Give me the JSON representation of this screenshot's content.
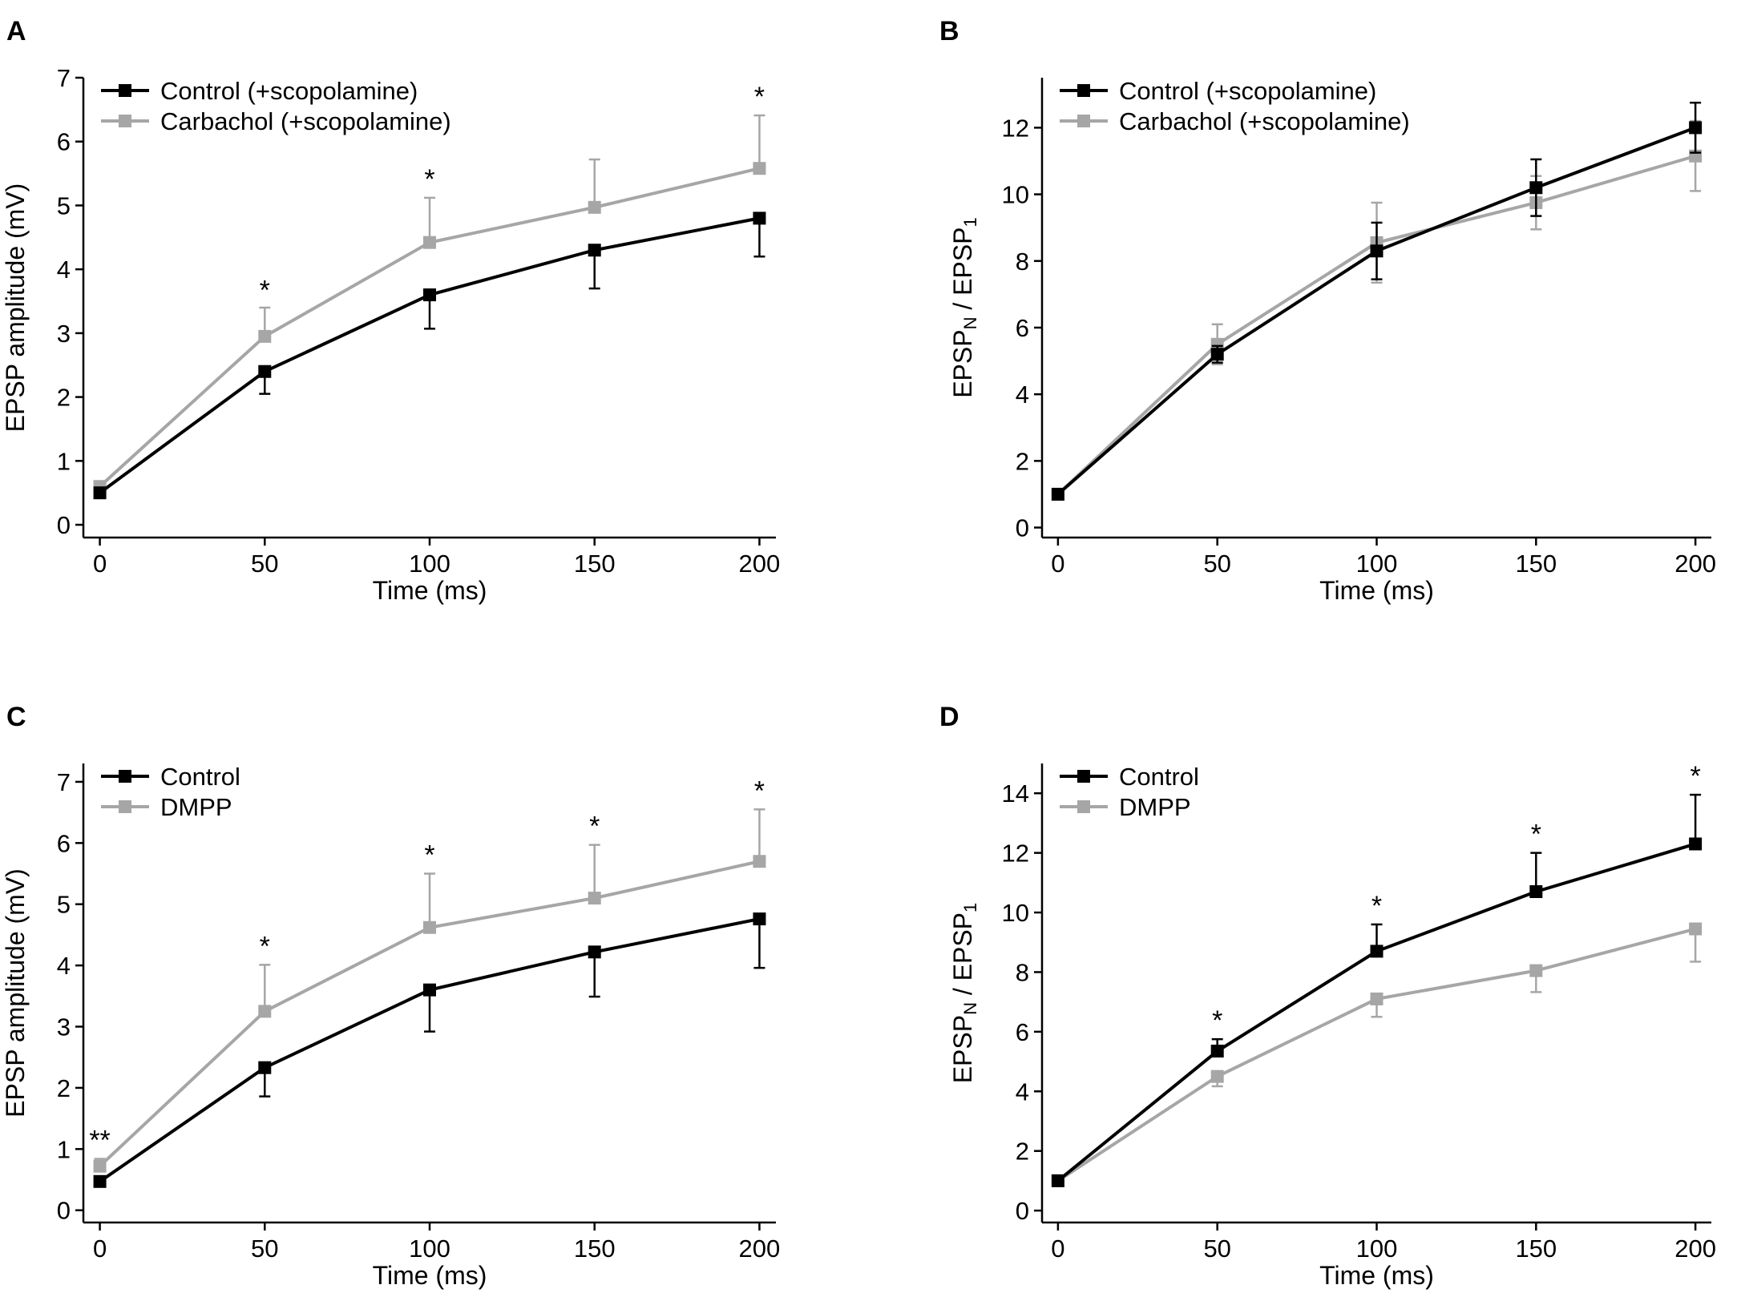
{
  "chart_data": [
    {
      "panel": "A",
      "type": "line",
      "xlabel": "Time (ms)",
      "ylabel": "EPSP amplitude (mV)",
      "x": [
        0,
        50,
        100,
        150,
        200
      ],
      "xlim": [
        -5,
        205
      ],
      "ylim": [
        -0.2,
        7.0
      ],
      "xticks": [
        0,
        50,
        100,
        150,
        200
      ],
      "yticks": [
        0,
        1,
        2,
        3,
        4,
        5,
        6,
        7
      ],
      "series": [
        {
          "name": "Control (+scopolamine)",
          "color": "#000000",
          "values": [
            0.5,
            2.4,
            3.6,
            4.3,
            4.8
          ],
          "error": [
            0.06,
            0.35,
            0.53,
            0.6,
            0.6
          ],
          "error_dir": "down"
        },
        {
          "name": "Carbachol (+scopolamine)",
          "color": "#a6a6a6",
          "values": [
            0.6,
            2.95,
            4.42,
            4.97,
            5.58
          ],
          "error": [
            0.05,
            0.45,
            0.7,
            0.75,
            0.83
          ],
          "error_dir": "up"
        }
      ],
      "significance": [
        {
          "x": 50,
          "y": 3.38,
          "label": "*"
        },
        {
          "x": 100,
          "y": 5.12,
          "label": "*"
        },
        {
          "x": 200,
          "y": 6.41,
          "label": "*"
        }
      ],
      "legend": "top-left"
    },
    {
      "panel": "B",
      "type": "line",
      "xlabel": "Time (ms)",
      "ylabel": {
        "main": "EPSP",
        "sub1": "N",
        "sep": " / EPSP",
        "sub2": "1"
      },
      "x": [
        0,
        50,
        100,
        150,
        200
      ],
      "xlim": [
        -5,
        205
      ],
      "ylim": [
        -0.3,
        13.5
      ],
      "xticks": [
        0,
        50,
        100,
        150,
        200
      ],
      "yticks": [
        0,
        2,
        4,
        6,
        8,
        10,
        12
      ],
      "series": [
        {
          "name": "Control (+scopolamine)",
          "color": "#000000",
          "values": [
            1.0,
            5.2,
            8.3,
            10.2,
            12.0
          ],
          "error": [
            0.05,
            0.25,
            0.85,
            0.85,
            0.75
          ],
          "error_dir": "both"
        },
        {
          "name": "Carbachol (+scopolamine)",
          "color": "#a6a6a6",
          "values": [
            1.0,
            5.5,
            8.55,
            9.75,
            11.15
          ],
          "error": [
            0.05,
            0.6,
            1.2,
            0.8,
            1.05
          ],
          "error_dir": "both"
        }
      ],
      "significance": [],
      "legend": "top-left"
    },
    {
      "panel": "C",
      "type": "line",
      "xlabel": "Time (ms)",
      "ylabel": "EPSP amplitude (mV)",
      "x": [
        0,
        50,
        100,
        150,
        200
      ],
      "xlim": [
        -5,
        205
      ],
      "ylim": [
        -0.2,
        7.3
      ],
      "xticks": [
        0,
        50,
        100,
        150,
        200
      ],
      "yticks": [
        0,
        1,
        2,
        3,
        4,
        5,
        6,
        7
      ],
      "series": [
        {
          "name": "Control",
          "color": "#000000",
          "values": [
            0.47,
            2.33,
            3.6,
            4.22,
            4.76
          ],
          "error": [
            0.05,
            0.47,
            0.68,
            0.73,
            0.8
          ],
          "error_dir": "down"
        },
        {
          "name": "DMPP",
          "color": "#a6a6a6",
          "values": [
            0.72,
            3.25,
            4.62,
            5.1,
            5.7
          ],
          "error": [
            0.12,
            0.76,
            0.88,
            0.87,
            0.85
          ],
          "error_dir": "up"
        }
      ],
      "significance": [
        {
          "x": 0,
          "y": 0.84,
          "label": "**"
        },
        {
          "x": 50,
          "y": 4.01,
          "label": "*"
        },
        {
          "x": 100,
          "y": 5.5,
          "label": "*"
        },
        {
          "x": 150,
          "y": 5.97,
          "label": "*"
        },
        {
          "x": 200,
          "y": 6.55,
          "label": "*"
        }
      ],
      "legend": "top-left"
    },
    {
      "panel": "D",
      "type": "line",
      "xlabel": "Time (ms)",
      "ylabel": {
        "main": "EPSP",
        "sub1": "N",
        "sep": " / EPSP",
        "sub2": "1"
      },
      "x": [
        0,
        50,
        100,
        150,
        200
      ],
      "xlim": [
        -5,
        205
      ],
      "ylim": [
        -0.4,
        15.0
      ],
      "xticks": [
        0,
        50,
        100,
        150,
        200
      ],
      "yticks": [
        0,
        2,
        4,
        6,
        8,
        10,
        12,
        14
      ],
      "series": [
        {
          "name": "Control",
          "color": "#000000",
          "values": [
            1.0,
            5.35,
            8.7,
            10.7,
            12.3
          ],
          "error": [
            0.05,
            0.4,
            0.9,
            1.3,
            1.65
          ],
          "error_dir": "up"
        },
        {
          "name": "DMPP",
          "color": "#a6a6a6",
          "values": [
            1.0,
            4.5,
            7.1,
            8.05,
            9.45
          ],
          "error": [
            0.05,
            0.33,
            0.6,
            0.72,
            1.1
          ],
          "error_dir": "down"
        }
      ],
      "significance": [
        {
          "x": 50,
          "y": 5.75,
          "label": "*"
        },
        {
          "x": 100,
          "y": 9.6,
          "label": "*"
        },
        {
          "x": 150,
          "y": 12.0,
          "label": "*"
        },
        {
          "x": 200,
          "y": 13.95,
          "label": "*"
        }
      ],
      "legend": "top-left"
    }
  ]
}
